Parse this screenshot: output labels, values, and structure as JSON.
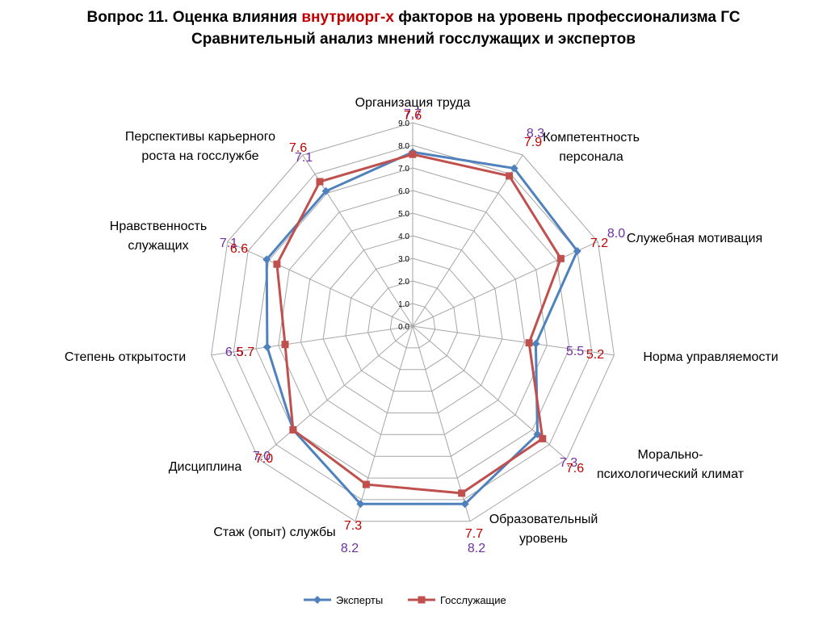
{
  "title": {
    "line1_prefix": "Вопрос 11. Оценка влияния ",
    "line1_highlight": "внутриорг-х",
    "line1_suffix": " факторов на уровень профессионализма ГС",
    "line2": "Сравнительный анализ мнений госслужащих и экспертов"
  },
  "colors": {
    "experts": "#4f81bd",
    "officials": "#c0504d",
    "experts_label": "#7030a0",
    "officials_label": "#c00000",
    "grid": "#a6a6a6"
  },
  "chart_data": {
    "type": "radar",
    "categories": [
      [
        "Организация труда"
      ],
      [
        "Компетентность",
        "персонала"
      ],
      [
        "Служебная мотивация"
      ],
      [
        "Норма управляемости"
      ],
      [
        "Морально-",
        "психологический климат"
      ],
      [
        "Образовательный",
        "уровень"
      ],
      [
        "Стаж (опыт) службы"
      ],
      [
        "Дисциплина"
      ],
      [
        "Степень открытости"
      ],
      [
        "Нравственность",
        "служащих"
      ],
      [
        "Перспективы карьерного",
        "роста на госслужбе"
      ]
    ],
    "rlim": [
      0,
      9
    ],
    "ticks": [
      "0.0",
      "1.0",
      "2.0",
      "3.0",
      "4.0",
      "5.0",
      "6.0",
      "7.0",
      "8.0",
      "9.0"
    ],
    "grid": true,
    "legend_position": "bottom",
    "series": [
      {
        "name": "Эксперты",
        "values": [
          7.7,
          8.3,
          8.0,
          5.5,
          7.3,
          8.2,
          8.2,
          7.0,
          6.5,
          7.1,
          7.1
        ]
      },
      {
        "name": "Госслужащие",
        "values": [
          7.6,
          7.9,
          7.2,
          5.2,
          7.6,
          7.7,
          7.3,
          7.0,
          5.7,
          6.6,
          7.6
        ]
      }
    ]
  }
}
